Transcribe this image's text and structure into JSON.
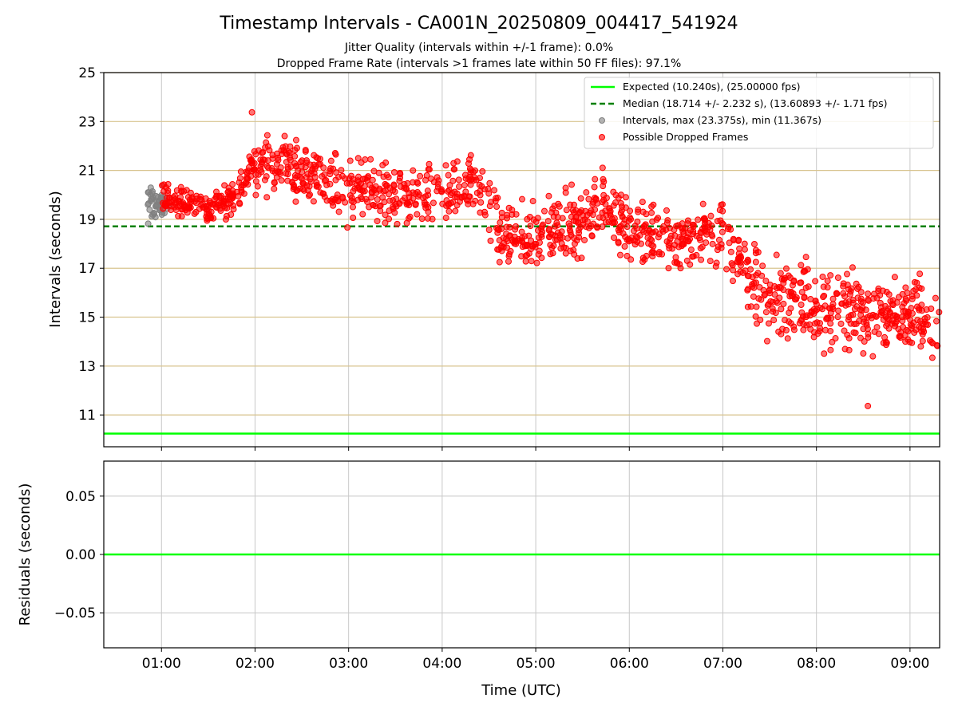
{
  "chart_data": [
    {
      "type": "scatter",
      "title": "Timestamp Intervals - CA001N_20250809_004417_541924",
      "subtitle_1": "Jitter Quality (intervals within +/-1 frame): 0.0%",
      "subtitle_2": "Dropped Frame Rate (intervals >1 frames late within 50 FF files): 97.1%",
      "ylabel": "Intervals (seconds)",
      "ylim": [
        9.7,
        25.0
      ],
      "yticks": [
        11,
        13,
        15,
        17,
        19,
        21,
        23,
        25
      ],
      "xlim": [
        "00:23",
        "09:19"
      ],
      "xticks": [
        "01:00",
        "02:00",
        "03:00",
        "04:00",
        "05:00",
        "06:00",
        "07:00",
        "08:00",
        "09:00"
      ],
      "grid": true,
      "legend_position": "top-right",
      "expected": {
        "label": "Expected (10.240s), (25.00000 fps)",
        "value": 10.24,
        "color": "#00ff00"
      },
      "median": {
        "label": "Median (18.714 +/- 2.232 s), (13.60893 +/- 1.71 fps)",
        "value": 18.714,
        "color": "#008000"
      },
      "series": [
        {
          "name": "Intervals, max (23.375s), min (11.367s)",
          "color": "#808080",
          "time_range": [
            "00:50",
            "01:05"
          ],
          "value_center": 19.6,
          "value_spread": 0.6
        },
        {
          "name": "Possible Dropped Frames",
          "color": "#ff0000",
          "trend": [
            {
              "time": "01:00",
              "value": 20.0
            },
            {
              "time": "01:30",
              "value": 19.4
            },
            {
              "time": "01:45",
              "value": 19.8
            },
            {
              "time": "02:00",
              "value": 21.3
            },
            {
              "time": "02:30",
              "value": 21.0
            },
            {
              "time": "03:00",
              "value": 20.1
            },
            {
              "time": "03:30",
              "value": 20.1
            },
            {
              "time": "04:00",
              "value": 19.8
            },
            {
              "time": "04:20",
              "value": 20.6
            },
            {
              "time": "04:40",
              "value": 18.2
            },
            {
              "time": "05:00",
              "value": 18.3
            },
            {
              "time": "05:30",
              "value": 19.0
            },
            {
              "time": "05:45",
              "value": 19.8
            },
            {
              "time": "06:00",
              "value": 18.3
            },
            {
              "time": "06:30",
              "value": 18.2
            },
            {
              "time": "07:00",
              "value": 18.5
            },
            {
              "time": "07:15",
              "value": 16.8
            },
            {
              "time": "07:30",
              "value": 15.8
            },
            {
              "time": "08:00",
              "value": 15.6
            },
            {
              "time": "08:30",
              "value": 15.2
            },
            {
              "time": "09:00",
              "value": 15.0
            },
            {
              "time": "09:19",
              "value": 14.6
            }
          ],
          "max": 23.375,
          "min": 11.367
        }
      ]
    },
    {
      "type": "line",
      "ylabel": "Residuals (seconds)",
      "xlabel": "Time (UTC)",
      "ylim": [
        -0.08,
        0.08
      ],
      "yticks": [
        0.05,
        0.0,
        -0.05
      ],
      "ytick_labels": [
        "0.05",
        "0.00",
        "−0.05"
      ],
      "xticks": [
        "01:00",
        "02:00",
        "03:00",
        "04:00",
        "05:00",
        "06:00",
        "07:00",
        "08:00",
        "09:00"
      ],
      "grid": true,
      "series": [
        {
          "color": "#00ff00",
          "x": [
            "00:23",
            "09:19"
          ],
          "values": [
            0.0,
            0.0
          ]
        }
      ]
    }
  ]
}
